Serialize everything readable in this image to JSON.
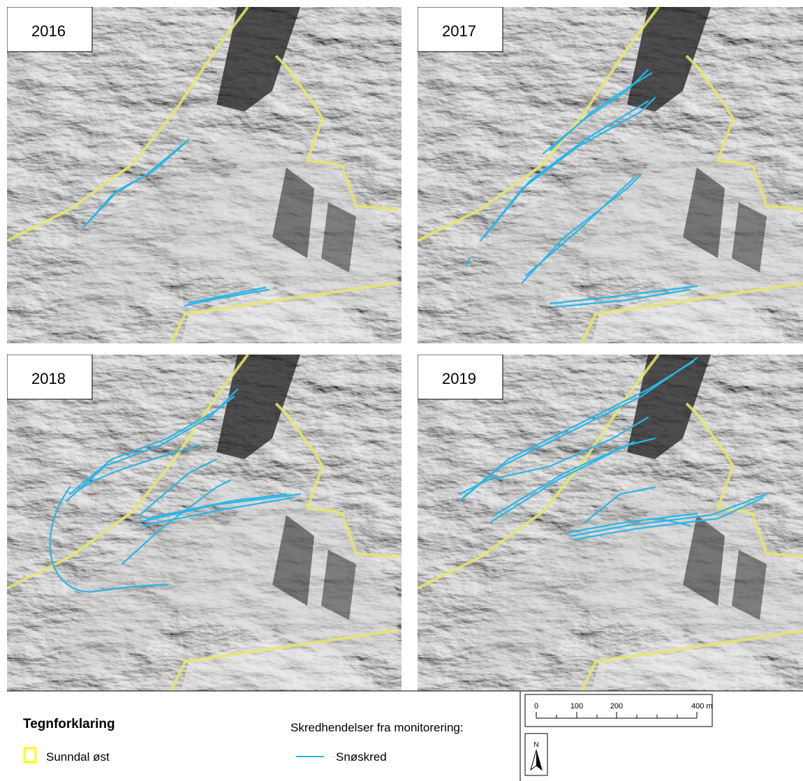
{
  "panels": [
    {
      "label": "2016"
    },
    {
      "label": "2017"
    },
    {
      "label": "2018"
    },
    {
      "label": "2019"
    }
  ],
  "legend": {
    "title": "Tegnforklaring",
    "heading": "Skredhendelser fra monitorering:",
    "items": [
      {
        "label": "Sunndal øst"
      },
      {
        "label": "Snøskred"
      }
    ]
  },
  "scale_bar": {
    "labels": [
      "0",
      "100",
      "200",
      "400 m"
    ]
  },
  "north_arrow": {
    "label": "N"
  }
}
